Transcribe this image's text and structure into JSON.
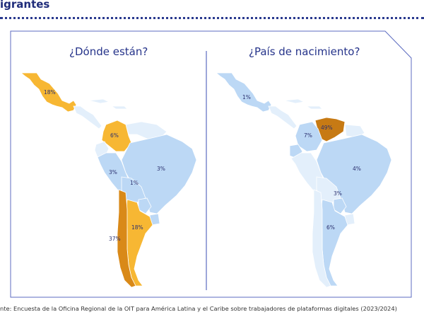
{
  "header": {
    "title": "igrantes"
  },
  "panels": {
    "left": {
      "title": "¿Dónde están?",
      "labels": {
        "mexico": "18%",
        "colombia": "6%",
        "peru": "3%",
        "brazil": "3%",
        "bolivia": "1%",
        "chile": "37%",
        "argentina": "18%"
      }
    },
    "right": {
      "title": "¿País de nacimiento?",
      "labels": {
        "mexico": "1%",
        "venezuela": "49%",
        "colombia": "7%",
        "brazil": "4%",
        "paraguay": "3%",
        "argentina": "6%"
      }
    }
  },
  "colors": {
    "light_blue": "#bcd8f5",
    "very_light_blue": "#e3effb",
    "yellow": "#f7b733",
    "dark_orange": "#d98918",
    "brown_orange": "#c77a14",
    "frame": "#5c6bc0",
    "title": "#25338a"
  },
  "source": "nte: Encuesta de la Oficina Regional de la OIT para América Latina y el Caribe sobre trabajadores de plataformas digitales (2023/2024)"
}
